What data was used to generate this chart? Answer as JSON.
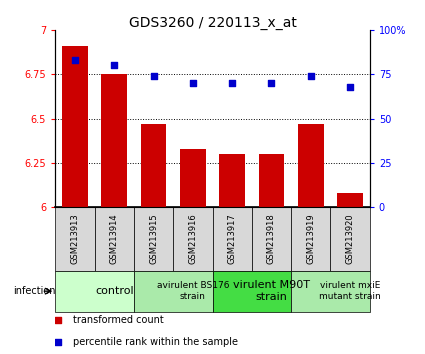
{
  "title": "GDS3260 / 220113_x_at",
  "samples": [
    "GSM213913",
    "GSM213914",
    "GSM213915",
    "GSM213916",
    "GSM213917",
    "GSM213918",
    "GSM213919",
    "GSM213920"
  ],
  "bar_values": [
    6.91,
    6.75,
    6.47,
    6.33,
    6.3,
    6.3,
    6.47,
    6.08
  ],
  "percentile_values": [
    83,
    80,
    74,
    70,
    70,
    70,
    74,
    68
  ],
  "ylim_left": [
    6.0,
    7.0
  ],
  "ylim_right": [
    0,
    100
  ],
  "yticks_left": [
    6.0,
    6.25,
    6.5,
    6.75,
    7.0
  ],
  "ytick_labels_left": [
    "6",
    "6.25",
    "6.5",
    "6.75",
    "7"
  ],
  "yticks_right": [
    0,
    25,
    50,
    75,
    100
  ],
  "ytick_labels_right": [
    "0",
    "25",
    "50",
    "75",
    "100%"
  ],
  "hlines": [
    6.25,
    6.5,
    6.75
  ],
  "bar_color": "#cc0000",
  "dot_color": "#0000cc",
  "groups": [
    {
      "label": "control",
      "start": 0,
      "end": 2,
      "color": "#ccffcc",
      "fontsize": 8,
      "bold": false
    },
    {
      "label": "avirulent BS176\nstrain",
      "start": 2,
      "end": 4,
      "color": "#aaeaaa",
      "fontsize": 6.5,
      "bold": false
    },
    {
      "label": "virulent M90T\nstrain",
      "start": 4,
      "end": 6,
      "color": "#44dd44",
      "fontsize": 8,
      "bold": false
    },
    {
      "label": "virulent mxiE\nmutant strain",
      "start": 6,
      "end": 8,
      "color": "#aaeaaa",
      "fontsize": 6.5,
      "bold": false
    }
  ],
  "infection_label": "infection",
  "legend_items": [
    {
      "color": "#cc0000",
      "label": "transformed count"
    },
    {
      "color": "#0000cc",
      "label": "percentile rank within the sample"
    }
  ],
  "bar_width": 0.65,
  "title_fontsize": 10,
  "sample_box_color": "#d8d8d8",
  "sample_fontsize": 6
}
